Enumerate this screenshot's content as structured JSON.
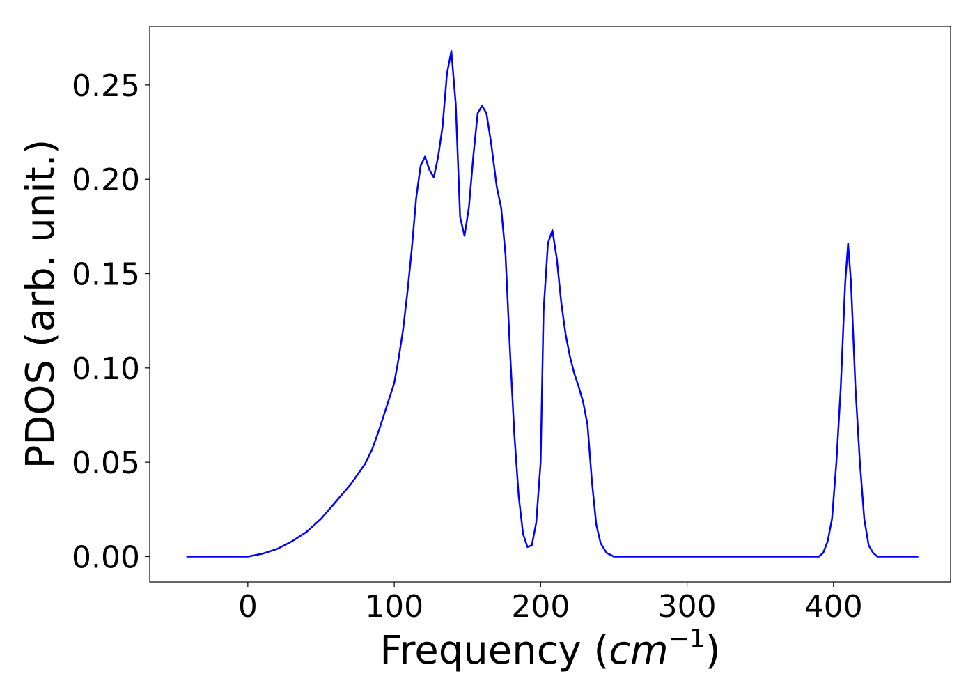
{
  "chart_data": {
    "type": "line",
    "xlabel": "Frequency (",
    "xlabel_math": "cm",
    "xlabel_sup": "−1",
    "xlabel_close": ")",
    "ylabel": "PDOS (arb. unit.)",
    "xlim": [
      -67,
      480
    ],
    "ylim": [
      -0.0135,
      0.281
    ],
    "xticks": [
      0,
      100,
      200,
      300,
      400
    ],
    "xtick_labels": [
      "0",
      "100",
      "200",
      "300",
      "400"
    ],
    "yticks": [
      0.0,
      0.05,
      0.1,
      0.15,
      0.2,
      0.25
    ],
    "ytick_labels": [
      "0.00",
      "0.05",
      "0.10",
      "0.15",
      "0.20",
      "0.25"
    ],
    "grid": false,
    "colors": {
      "line": "#0000ff",
      "axes": "#000000"
    },
    "series": [
      {
        "x": [
          -42,
          0,
          10,
          20,
          30,
          40,
          50,
          60,
          70,
          80,
          85,
          90,
          95,
          100,
          103,
          106,
          109,
          112,
          115,
          118,
          121,
          124,
          127,
          130,
          133,
          136,
          139,
          142,
          145,
          148,
          151,
          154,
          157,
          160,
          163,
          166,
          170,
          173,
          176,
          179,
          182,
          185,
          188,
          191,
          194,
          197,
          200,
          202,
          205,
          208,
          211,
          214,
          217,
          220,
          223,
          226,
          229,
          232,
          235,
          238,
          241,
          245,
          250,
          300,
          350,
          380,
          390,
          393,
          396,
          399,
          402,
          405,
          408,
          410,
          412,
          415,
          418,
          421,
          424,
          427,
          430,
          440,
          458
        ],
        "y": [
          0.0,
          0.0,
          0.0015,
          0.004,
          0.008,
          0.013,
          0.02,
          0.029,
          0.038,
          0.049,
          0.057,
          0.068,
          0.08,
          0.092,
          0.105,
          0.12,
          0.14,
          0.163,
          0.19,
          0.207,
          0.212,
          0.205,
          0.201,
          0.212,
          0.228,
          0.256,
          0.268,
          0.24,
          0.18,
          0.17,
          0.185,
          0.212,
          0.235,
          0.239,
          0.235,
          0.22,
          0.196,
          0.185,
          0.16,
          0.11,
          0.065,
          0.032,
          0.012,
          0.005,
          0.006,
          0.018,
          0.05,
          0.13,
          0.166,
          0.173,
          0.158,
          0.135,
          0.118,
          0.106,
          0.097,
          0.09,
          0.082,
          0.07,
          0.04,
          0.017,
          0.007,
          0.002,
          0.0,
          0.0,
          0.0,
          0.0,
          0.0,
          0.002,
          0.008,
          0.02,
          0.05,
          0.09,
          0.145,
          0.166,
          0.145,
          0.09,
          0.05,
          0.02,
          0.006,
          0.002,
          0.0,
          0.0,
          0.0
        ]
      }
    ]
  }
}
